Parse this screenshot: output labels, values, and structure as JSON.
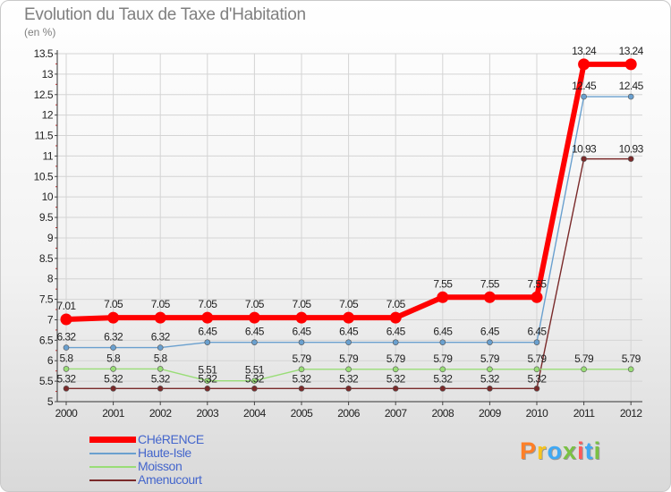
{
  "chart_data": {
    "type": "line",
    "title": "Evolution du Taux de Taxe d'Habitation",
    "ylabel": "(en %)",
    "xlabel": "",
    "categories": [
      "2000",
      "2001",
      "2002",
      "2003",
      "2004",
      "2005",
      "2006",
      "2007",
      "2008",
      "2009",
      "2010",
      "2011",
      "2012"
    ],
    "ylim": [
      5,
      13.5
    ],
    "yticks": [
      "5",
      "5.5",
      "6",
      "6.5",
      "7",
      "7.5",
      "8",
      "8.5",
      "9",
      "9.5",
      "10",
      "10.5",
      "11",
      "11.5",
      "12",
      "12.5",
      "13",
      "13.5"
    ],
    "grid": true,
    "series": [
      {
        "name": "CHéRENCE",
        "color": "#ff0000",
        "values": [
          7.01,
          7.05,
          7.05,
          7.05,
          7.05,
          7.05,
          7.05,
          7.05,
          7.55,
          7.55,
          7.55,
          13.24,
          13.24
        ],
        "labels": [
          "7.01",
          "7.05",
          "7.05",
          "7.05",
          "7.05",
          "7.05",
          "7.05",
          "7.05",
          "7.55",
          "7.55",
          "7.55",
          "13.24",
          "13.24"
        ]
      },
      {
        "name": "Haute-Isle",
        "color": "#6aa0cf",
        "values": [
          6.32,
          6.32,
          6.32,
          6.45,
          6.45,
          6.45,
          6.45,
          6.45,
          6.45,
          6.45,
          6.45,
          12.45,
          12.45
        ],
        "labels": [
          "6.32",
          "6.32",
          "6.32",
          "6.45",
          "6.45",
          "6.45",
          "6.45",
          "6.45",
          "6.45",
          "6.45",
          "6.45",
          "12.45",
          "12.45"
        ]
      },
      {
        "name": "Moisson",
        "color": "#99dd77",
        "values": [
          5.8,
          5.8,
          5.8,
          5.51,
          5.51,
          5.79,
          5.79,
          5.79,
          5.79,
          5.79,
          5.79,
          5.79,
          5.79
        ],
        "labels": [
          "5.8",
          "5.8",
          "5.8",
          "5.51",
          "5.51",
          "5.79",
          "5.79",
          "5.79",
          "5.79",
          "5.79",
          "5.79",
          "5.79",
          "5.79"
        ]
      },
      {
        "name": "Amenucourt",
        "color": "#7a2a2a",
        "values": [
          5.32,
          5.32,
          5.32,
          5.32,
          5.32,
          5.32,
          5.32,
          5.32,
          5.32,
          5.32,
          5.32,
          10.93,
          10.93
        ],
        "labels": [
          "5.32",
          "5.32",
          "5.32",
          "5.32",
          "5.32",
          "5.32",
          "5.32",
          "5.32",
          "5.32",
          "5.32",
          "5.32",
          "10.93",
          "10.93"
        ]
      }
    ]
  },
  "logo": {
    "letters": [
      "P",
      "r",
      "o",
      "x",
      "i",
      "t",
      "i"
    ],
    "colors": [
      "#ff7f27",
      "#f7c41f",
      "#3fa9f5",
      "#7ac143",
      "#ff5a5a",
      "#3fa9f5",
      "#7ac143"
    ]
  }
}
